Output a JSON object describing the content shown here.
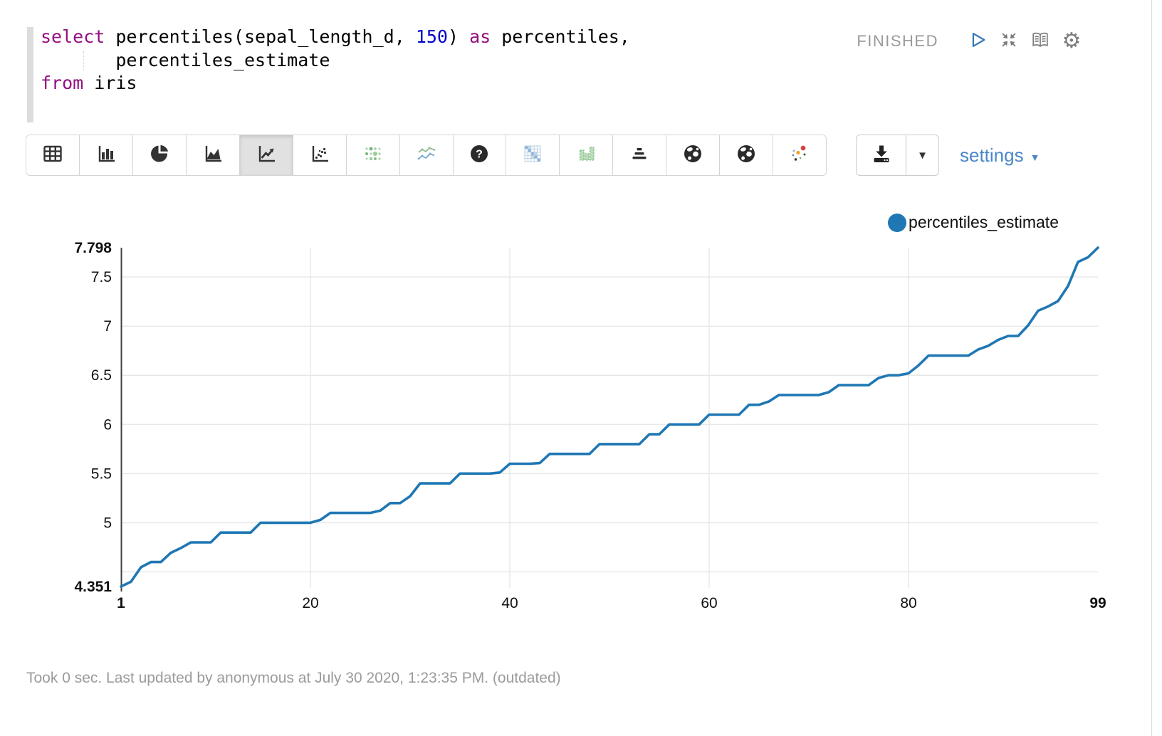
{
  "editor": {
    "code_lines": [
      [
        {
          "type": "keyword",
          "text": "select"
        },
        {
          "type": "plain",
          "text": " percentiles(sepal_length_d, "
        },
        {
          "type": "number",
          "text": "150"
        },
        {
          "type": "plain",
          "text": ") "
        },
        {
          "type": "keyword",
          "text": "as"
        },
        {
          "type": "plain",
          "text": " percentiles,"
        }
      ],
      [
        {
          "type": "plain",
          "text": "       percentiles_estimate"
        }
      ],
      [
        {
          "type": "keyword",
          "text": "from"
        },
        {
          "type": "plain",
          "text": " iris"
        }
      ]
    ]
  },
  "status": {
    "label": "FINISHED",
    "icons": [
      {
        "icon": "run-icon"
      },
      {
        "icon": "collapse-icon"
      },
      {
        "icon": "book-icon"
      },
      {
        "icon": "gear-icon"
      }
    ]
  },
  "toolbar": {
    "chart_buttons": [
      {
        "icon": "table-icon",
        "selected": false
      },
      {
        "icon": "bar-chart-icon",
        "selected": false
      },
      {
        "icon": "pie-chart-icon",
        "selected": false
      },
      {
        "icon": "area-chart-icon",
        "selected": false
      },
      {
        "icon": "line-chart-icon",
        "selected": true
      },
      {
        "icon": "scatter-plot-icon",
        "selected": false
      },
      {
        "icon": "bubble-chart-icon",
        "selected": false
      },
      {
        "icon": "multi-line-chart-icon",
        "selected": false
      },
      {
        "icon": "help-icon",
        "selected": false
      },
      {
        "icon": "heatmap-icon",
        "selected": false
      },
      {
        "icon": "grouped-bar-chart-icon",
        "selected": false
      },
      {
        "icon": "pyramid-chart-icon",
        "selected": false
      },
      {
        "icon": "map-chart-icon",
        "selected": false
      },
      {
        "icon": "globe-chart-icon",
        "selected": false
      },
      {
        "icon": "colored-scatter-icon",
        "selected": false
      }
    ],
    "download_icon": "download-icon",
    "download_caret": "▼",
    "settings_label": "settings",
    "settings_caret": "▼"
  },
  "legend": {
    "label": "percentiles_estimate",
    "marker_color": "#1f77b4"
  },
  "chart_data": {
    "type": "line",
    "title": "",
    "xlabel": "",
    "ylabel": "",
    "xlim": [
      1,
      99
    ],
    "ylim": [
      4.351,
      7.798
    ],
    "grid": true,
    "legend_position": "top-right",
    "x_ticks": [
      {
        "label": "1",
        "value": 1,
        "bold": true
      },
      {
        "label": "20",
        "value": 20,
        "bold": false
      },
      {
        "label": "40",
        "value": 40,
        "bold": false
      },
      {
        "label": "60",
        "value": 60,
        "bold": false
      },
      {
        "label": "80",
        "value": 80,
        "bold": false
      },
      {
        "label": "99",
        "value": 99,
        "bold": true
      }
    ],
    "y_ticks": [
      {
        "label": "7.798",
        "value": 7.798,
        "bold": true
      },
      {
        "label": "7.5",
        "value": 7.5,
        "bold": false
      },
      {
        "label": "7",
        "value": 7,
        "bold": false
      },
      {
        "label": "6.5",
        "value": 6.5,
        "bold": false
      },
      {
        "label": "6",
        "value": 6,
        "bold": false
      },
      {
        "label": "5.5",
        "value": 5.5,
        "bold": false
      },
      {
        "label": "5",
        "value": 5,
        "bold": false
      },
      {
        "label": "4.351",
        "value": 4.351,
        "bold": true
      }
    ],
    "grid_x_values": [
      20,
      40,
      60,
      80
    ],
    "grid_y_values": [
      7.5,
      7,
      6.5,
      6,
      5.5,
      5,
      4.5
    ],
    "series": [
      {
        "name": "percentiles_estimate",
        "color": "#1f77b4",
        "x_start": 1,
        "x_step": 1,
        "values": [
          4.351,
          4.4,
          4.547,
          4.6,
          4.6,
          4.694,
          4.743,
          4.8,
          4.8,
          4.8,
          4.9,
          4.9,
          4.9,
          4.9,
          5,
          5,
          5,
          5,
          5,
          5,
          5.029,
          5.1,
          5.1,
          5.1,
          5.1,
          5.1,
          5.123,
          5.2,
          5.2,
          5.27,
          5.4,
          5.4,
          5.4,
          5.4,
          5.5,
          5.5,
          5.5,
          5.5,
          5.511,
          5.6,
          5.6,
          5.6,
          5.607,
          5.7,
          5.7,
          5.7,
          5.7,
          5.7,
          5.8,
          5.8,
          5.8,
          5.8,
          5.8,
          5.9,
          5.9,
          6,
          6,
          6,
          6,
          6.1,
          6.1,
          6.1,
          6.1,
          6.2,
          6.2,
          6.234,
          6.3,
          6.3,
          6.3,
          6.3,
          6.3,
          6.328,
          6.4,
          6.4,
          6.4,
          6.4,
          6.473,
          6.5,
          6.5,
          6.52,
          6.6,
          6.7,
          6.7,
          6.7,
          6.7,
          6.7,
          6.763,
          6.8,
          6.861,
          6.9,
          6.9,
          7.008,
          7.157,
          7.2,
          7.255,
          7.408,
          7.653,
          7.7,
          7.798
        ]
      }
    ]
  },
  "footer": {
    "text": "Took 0 sec. Last updated by anonymous at July 30 2020, 1:23:35 PM. (outdated)"
  },
  "colors": {
    "keyword": "#930f80",
    "number": "#0000cd",
    "line_series": "#1f77b4",
    "status_gray": "#999999",
    "run_blue": "#3878b8",
    "settings_blue": "#4a87c9",
    "gridline": "#e8e8e8",
    "axis": "#424242"
  }
}
